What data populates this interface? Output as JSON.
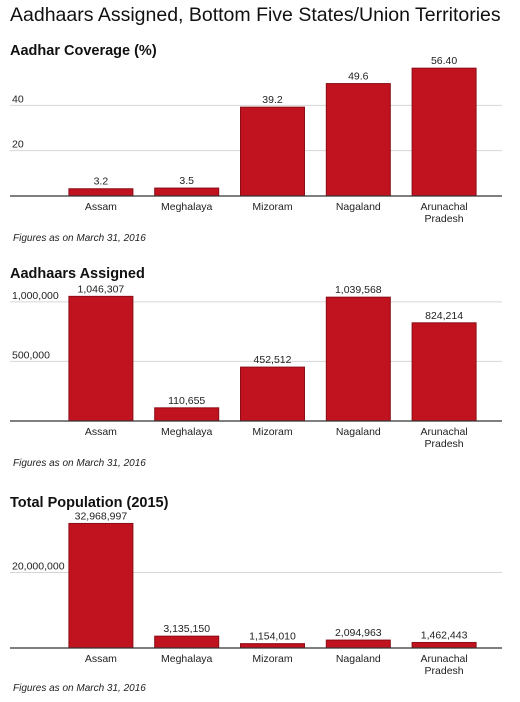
{
  "title": "Aadhaars Assigned, Bottom Five States/Union Territories",
  "colors": {
    "bar": "#c1121f",
    "bar_edge": "#8c0d16",
    "grid": "#d6d6d6",
    "baseline": "#333333",
    "text": "#222222"
  },
  "chart_data": [
    {
      "type": "bar",
      "title": "Aadhar Coverage (%)",
      "footnote": "Figures as on March 31, 2016",
      "categories": [
        "Assam",
        "Meghalaya",
        "Mizoram",
        "Nagaland",
        "Arunachal\nPradesh"
      ],
      "values": [
        3.2,
        3.5,
        39.2,
        49.6,
        56.4
      ],
      "value_labels": [
        "3.2",
        "3.5",
        "39.2",
        "49.6",
        "56.40"
      ],
      "yticks": [
        20,
        40
      ],
      "ytick_labels": [
        "20",
        "40"
      ],
      "ylim": [
        0,
        60
      ],
      "grid": true
    },
    {
      "type": "bar",
      "title": "Aadhaars Assigned",
      "footnote": "Figures as on March 31, 2016",
      "categories": [
        "Assam",
        "Meghalaya",
        "Mizoram",
        "Nagaland",
        "Arunachal\nPradesh"
      ],
      "values": [
        1046307,
        110655,
        452512,
        1039568,
        824214
      ],
      "value_labels": [
        "1,046,307",
        "110,655",
        "452,512",
        "1,039,568",
        "824,214"
      ],
      "yticks": [
        500000,
        1000000
      ],
      "ytick_labels": [
        "500,000",
        "1,000,000"
      ],
      "ylim": [
        0,
        1150000
      ],
      "grid": true
    },
    {
      "type": "bar",
      "title": "Total Population (2015)",
      "footnote": "Figures as on March 31, 2016",
      "categories": [
        "Assam",
        "Meghalaya",
        "Mizoram",
        "Nagaland",
        "Arunachal\nPradesh"
      ],
      "values": [
        32968997,
        3135150,
        1154010,
        2094963,
        1462443
      ],
      "value_labels": [
        "32,968,997",
        "3,135,150",
        "1,154,010",
        "2,094,963",
        "1,462,443"
      ],
      "yticks": [
        20000000
      ],
      "ytick_labels": [
        "20,000,000"
      ],
      "ylim": [
        0,
        36000000
      ],
      "grid": true
    }
  ]
}
